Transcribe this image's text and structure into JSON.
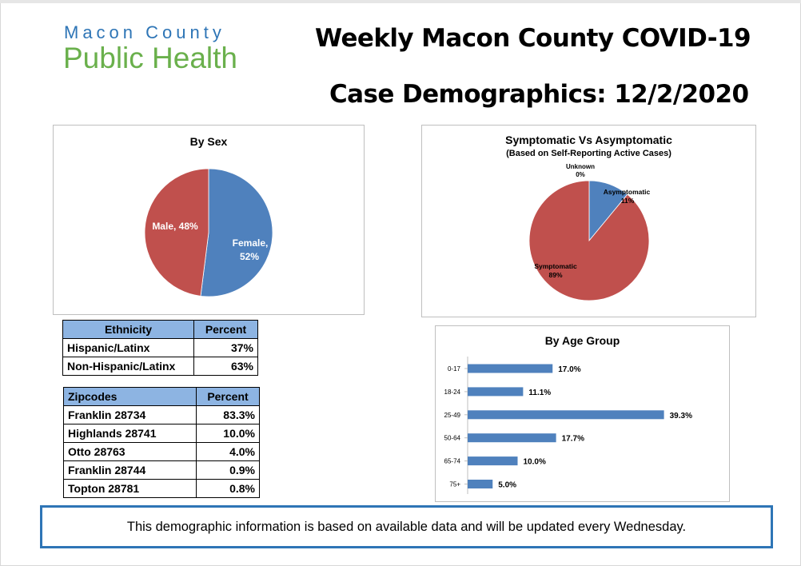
{
  "logo": {
    "line1": "Macon County",
    "line2": "Public Health"
  },
  "title": {
    "line1": "Weekly Macon County COVID-19",
    "line2": "Case Demographics: 12/2/2020"
  },
  "colors": {
    "blue": "#4f81bd",
    "red": "#c0504d",
    "header_fill": "#8db4e2",
    "footer_border": "#2e75b6",
    "logo_blue": "#2e75b6",
    "logo_green": "#6ab04c"
  },
  "chart_data": [
    {
      "type": "pie",
      "title": "By Sex",
      "slices": [
        {
          "label": "Female,",
          "pct_label": "52%",
          "value": 52,
          "color": "#4f81bd"
        },
        {
          "label": "Male, 48%",
          "pct_label": "",
          "value": 48,
          "color": "#c0504d"
        }
      ]
    },
    {
      "type": "pie",
      "title": "Symptomatic Vs Asymptomatic",
      "subtitle": "(Based on Self-Reporting Active Cases)",
      "slices": [
        {
          "label": "Asymptomatic",
          "pct_label": "11%",
          "value": 11,
          "color": "#4f81bd"
        },
        {
          "label": "Symptomatic",
          "pct_label": "89%",
          "value": 89,
          "color": "#c0504d"
        },
        {
          "label": "Unknown",
          "pct_label": "0%",
          "value": 0,
          "color": "#9bbb59"
        }
      ]
    },
    {
      "type": "bar",
      "orientation": "horizontal",
      "title": "By Age Group",
      "categories": [
        "0-17",
        "18-24",
        "25-49",
        "50-64",
        "65-74",
        "75+"
      ],
      "values": [
        17.0,
        11.1,
        39.3,
        17.7,
        10.0,
        5.0
      ],
      "value_labels": [
        "17.0%",
        "11.1%",
        "39.3%",
        "17.7%",
        "10.0%",
        "5.0%"
      ],
      "xlim": [
        0,
        40
      ],
      "color": "#4f81bd"
    }
  ],
  "ethnicity_table": {
    "headers": [
      "Ethnicity",
      "Percent"
    ],
    "rows": [
      [
        "Hispanic/Latinx",
        "37%"
      ],
      [
        "Non-Hispanic/Latinx",
        "63%"
      ]
    ]
  },
  "zipcode_table": {
    "headers": [
      "Zipcodes",
      "Percent"
    ],
    "rows": [
      [
        "Franklin 28734",
        "83.3%"
      ],
      [
        "Highlands 28741",
        "10.0%"
      ],
      [
        "Otto 28763",
        "4.0%"
      ],
      [
        "Franklin 28744",
        "0.9%"
      ],
      [
        "Topton 28781",
        "0.8%"
      ]
    ]
  },
  "footer": {
    "text": "This demographic information is based on available data and will be updated every Wednesday."
  }
}
